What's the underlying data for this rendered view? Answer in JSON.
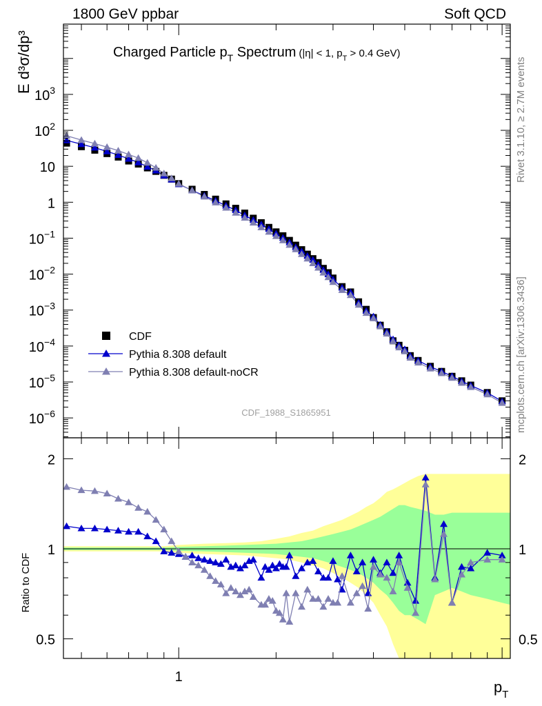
{
  "header": {
    "left": "1800 GeV ppbar",
    "right": "Soft QCD",
    "side_top": "Rivet 3.1.10, ≥ 2.7M events",
    "side_bottom": "mcplots.cern.ch [arXiv:1306.3436]"
  },
  "colors": {
    "cdf": "#000000",
    "default": "#0000cc",
    "nocr": "#7f7fb2",
    "band_yellow": "#ffff99",
    "band_green": "#99ff99"
  },
  "chart_data": [
    {
      "type": "scatter",
      "title": "Charged Particle p",
      "title_sub": "T",
      "title_word": " Spectrum",
      "title_cuts": "(|η| < 1, p",
      "title_cuts_sub": "T",
      "title_cuts_end": " > 0.4 GeV)",
      "ylabel": "E d³σ/dp³",
      "watermark": "CDF_1988_S1865951",
      "xscale": "log",
      "yscale": "log",
      "xlim": [
        0.44,
        10.6
      ],
      "ylim": [
        2.8e-07,
        90000.0
      ],
      "ytick_labels": [
        {
          "v": 1e-06,
          "b": "10",
          "e": "−6"
        },
        {
          "v": 1e-05,
          "b": "10",
          "e": "−5"
        },
        {
          "v": 0.0001,
          "b": "10",
          "e": "−4"
        },
        {
          "v": 0.001,
          "b": "10",
          "e": "−3"
        },
        {
          "v": 0.01,
          "b": "10",
          "e": "−2"
        },
        {
          "v": 0.1,
          "b": "10",
          "e": "−1"
        },
        {
          "v": 1,
          "b": "1",
          "e": ""
        },
        {
          "v": 10,
          "b": "10",
          "e": ""
        },
        {
          "v": 100,
          "b": "10",
          "e": "2"
        },
        {
          "v": 1000,
          "b": "10",
          "e": "3"
        }
      ],
      "legend": [
        "CDF",
        "Pythia 8.308 default",
        "Pythia 8.308 default-noCR"
      ],
      "legend_position": "bottom-left",
      "x": [
        0.45,
        0.5,
        0.55,
        0.6,
        0.65,
        0.7,
        0.75,
        0.8,
        0.85,
        0.9,
        0.95,
        1.0,
        1.1,
        1.2,
        1.3,
        1.4,
        1.5,
        1.6,
        1.7,
        1.8,
        1.9,
        2.0,
        2.1,
        2.2,
        2.3,
        2.4,
        2.5,
        2.6,
        2.7,
        2.8,
        2.9,
        3.0,
        3.2,
        3.4,
        3.6,
        3.8,
        4.0,
        4.2,
        4.4,
        4.6,
        4.8,
        5.0,
        5.2,
        5.5,
        6.0,
        6.5,
        7.0,
        7.5,
        8.0,
        9.0,
        10.0
      ],
      "series": [
        {
          "name": "CDF",
          "marker": "square",
          "values": [
            44,
            35,
            28,
            22.5,
            18,
            14,
            11.5,
            9,
            7.2,
            5.6,
            4.4,
            3.3,
            2.3,
            1.65,
            1.22,
            0.9,
            0.68,
            0.5,
            0.36,
            0.27,
            0.2,
            0.15,
            0.117,
            0.087,
            0.064,
            0.048,
            0.036,
            0.027,
            0.021,
            0.0145,
            0.011,
            0.0078,
            0.0045,
            0.0032,
            0.0017,
            0.00105,
            0.00062,
            0.00038,
            0.00025,
            0.00014,
            0.000105,
            7.6e-05,
            5.41e-05,
            3.97e-05,
            2.73e-05,
            1.97e-05,
            1.44e-05,
            1.08e-05,
            8.2e-06,
            5.1e-06,
            3e-06
          ]
        },
        {
          "name": "Pythia 8.308 default",
          "marker": "triangle",
          "values": [
            52.5,
            41.2,
            32.8,
            25.9,
            20.6,
            16.1,
            12.8,
            9.7,
            7.6,
            5.5,
            4.27,
            3.17,
            2.14,
            1.51,
            1.1,
            0.8,
            0.6,
            0.43,
            0.32,
            0.24,
            0.18,
            0.134,
            0.102,
            0.076,
            0.056,
            0.043,
            0.032,
            0.025,
            0.018,
            0.013,
            0.0099,
            0.0071,
            0.0042,
            0.0031,
            0.0016,
            0.00095,
            0.00066,
            0.00039,
            0.00025,
            0.000154,
            0.000104,
            8.1e-05,
            5.33e-05,
            3.92e-05,
            2.65e-05,
            1.96e-05,
            1.45e-05,
            1.05e-05,
            8e-06,
            5e-06,
            2.9e-06
          ]
        },
        {
          "name": "Pythia 8.308 default-noCR",
          "marker": "triangle",
          "values": [
            70.8,
            53.6,
            42.8,
            34.2,
            27.2,
            21.4,
            16.9,
            12.5,
            9.1,
            6.3,
            4.62,
            3.27,
            2.12,
            1.43,
            0.98,
            0.7,
            0.51,
            0.37,
            0.27,
            0.2,
            0.15,
            0.114,
            0.087,
            0.065,
            0.049,
            0.036,
            0.027,
            0.02,
            0.015,
            0.011,
            0.0082,
            0.006,
            0.0036,
            0.0026,
            0.0014,
            0.00083,
            0.00059,
            0.00035,
            0.00022,
            0.000136,
            9.1e-05,
            7.1e-05,
            4.7e-05,
            3.45e-05,
            2.36e-05,
            1.75e-05,
            1.3e-05,
            9.4e-06,
            7.2e-06,
            4.5e-06,
            2.6e-06
          ]
        }
      ]
    },
    {
      "type": "line",
      "ylabel": "Ratio to CDF",
      "xlabel": "p",
      "xlabel_sub": "T",
      "xscale": "log",
      "yscale": "log",
      "xlim": [
        0.44,
        10.6
      ],
      "ylim": [
        0.43,
        2.35
      ],
      "yticks": [
        0.5,
        1,
        2
      ],
      "ytick_labels": [
        "0.5",
        "1",
        "2"
      ],
      "xticks_labeled": [
        1
      ],
      "xtick_labels": [
        "1"
      ],
      "x": [
        0.45,
        0.5,
        0.55,
        0.6,
        0.65,
        0.7,
        0.75,
        0.8,
        0.85,
        0.9,
        0.95,
        1.0,
        1.05,
        1.1,
        1.15,
        1.2,
        1.25,
        1.3,
        1.35,
        1.4,
        1.45,
        1.5,
        1.55,
        1.6,
        1.65,
        1.7,
        1.8,
        1.85,
        1.9,
        1.95,
        2.0,
        2.05,
        2.1,
        2.15,
        2.2,
        2.3,
        2.4,
        2.5,
        2.6,
        2.7,
        2.8,
        2.9,
        3.0,
        3.1,
        3.2,
        3.4,
        3.55,
        3.7,
        3.85,
        4.0,
        4.2,
        4.4,
        4.6,
        4.8,
        5.1,
        5.4,
        5.8,
        6.2,
        6.6,
        7.0,
        7.5,
        8.0,
        9.0,
        10.0
      ],
      "series": [
        {
          "name": "Pythia 8.308 default",
          "values": [
            1.19,
            1.17,
            1.17,
            1.16,
            1.15,
            1.14,
            1.14,
            1.1,
            1.06,
            0.98,
            0.97,
            0.96,
            0.94,
            0.95,
            0.93,
            0.92,
            0.91,
            0.9,
            0.89,
            0.92,
            0.87,
            0.88,
            0.86,
            0.88,
            0.91,
            0.92,
            0.8,
            0.87,
            0.85,
            0.88,
            0.86,
            0.89,
            0.87,
            0.87,
            0.95,
            0.81,
            0.86,
            0.9,
            0.91,
            0.84,
            0.8,
            0.8,
            0.91,
            0.79,
            0.73,
            0.95,
            0.84,
            0.9,
            0.71,
            0.92,
            0.83,
            0.9,
            0.83,
            0.95,
            0.77,
            0.67,
            1.73,
            0.8,
            1.21,
            0.66,
            0.87,
            0.86,
            0.97,
            0.95
          ]
        },
        {
          "name": "Pythia 8.308 default-noCR",
          "values": [
            1.61,
            1.57,
            1.56,
            1.53,
            1.47,
            1.43,
            1.37,
            1.33,
            1.25,
            1.16,
            1.06,
            0.98,
            0.94,
            0.9,
            0.88,
            0.85,
            0.81,
            0.78,
            0.76,
            0.71,
            0.74,
            0.72,
            0.7,
            0.72,
            0.73,
            0.69,
            0.65,
            0.65,
            0.68,
            0.67,
            0.62,
            0.61,
            0.58,
            0.71,
            0.57,
            0.71,
            0.64,
            0.73,
            0.68,
            0.68,
            0.64,
            0.68,
            0.66,
            0.66,
            0.81,
            0.66,
            0.71,
            0.75,
            0.63,
            0.87,
            0.82,
            0.8,
            0.72,
            0.9,
            0.74,
            0.61,
            1.64,
            0.79,
            1.12,
            0.66,
            0.82,
            0.9,
            0.92,
            0.92
          ]
        }
      ],
      "band_x": [
        0.44,
        0.9,
        1.0,
        1.2,
        1.4,
        1.6,
        1.8,
        2.0,
        2.2,
        2.4,
        2.6,
        2.8,
        3.0,
        3.2,
        3.4,
        3.6,
        3.8,
        4.0,
        4.2,
        4.4,
        4.6,
        4.8,
        5.0,
        5.2,
        5.5,
        5.8,
        6.2,
        6.6,
        7.0,
        7.5,
        8.0,
        9.0,
        10.0,
        10.6
      ],
      "band_yellow_lo": [
        0.98,
        0.98,
        0.97,
        0.96,
        0.955,
        0.95,
        0.94,
        0.93,
        0.92,
        0.9,
        0.88,
        0.86,
        0.83,
        0.8,
        0.77,
        0.74,
        0.7,
        0.66,
        0.6,
        0.55,
        0.48,
        0.4,
        0.4,
        0.32,
        0.3,
        0.3,
        0.3,
        0.3,
        0.3,
        0.3,
        0.3,
        0.3,
        0.3,
        0.3
      ],
      "band_yellow_hi": [
        1.02,
        1.02,
        1.03,
        1.04,
        1.045,
        1.05,
        1.06,
        1.08,
        1.1,
        1.13,
        1.15,
        1.19,
        1.22,
        1.25,
        1.29,
        1.33,
        1.38,
        1.42,
        1.48,
        1.55,
        1.58,
        1.62,
        1.66,
        1.7,
        1.75,
        1.78,
        1.78,
        1.78,
        1.78,
        1.78,
        1.78,
        1.78,
        1.78,
        1.78
      ],
      "band_green_lo": [
        0.99,
        0.99,
        0.985,
        0.98,
        0.975,
        0.97,
        0.965,
        0.96,
        0.95,
        0.94,
        0.93,
        0.91,
        0.89,
        0.87,
        0.85,
        0.83,
        0.8,
        0.77,
        0.73,
        0.7,
        0.66,
        0.62,
        0.6,
        0.6,
        0.58,
        0.56,
        0.7,
        0.72,
        0.74,
        0.72,
        0.7,
        0.68,
        0.66,
        0.65
      ],
      "band_green_hi": [
        1.01,
        1.01,
        1.015,
        1.02,
        1.025,
        1.03,
        1.035,
        1.04,
        1.05,
        1.06,
        1.08,
        1.1,
        1.12,
        1.14,
        1.16,
        1.19,
        1.22,
        1.25,
        1.28,
        1.32,
        1.36,
        1.4,
        1.4,
        1.38,
        1.36,
        1.34,
        1.3,
        1.3,
        1.32,
        1.32,
        1.32,
        1.32,
        1.32,
        1.32
      ]
    }
  ]
}
